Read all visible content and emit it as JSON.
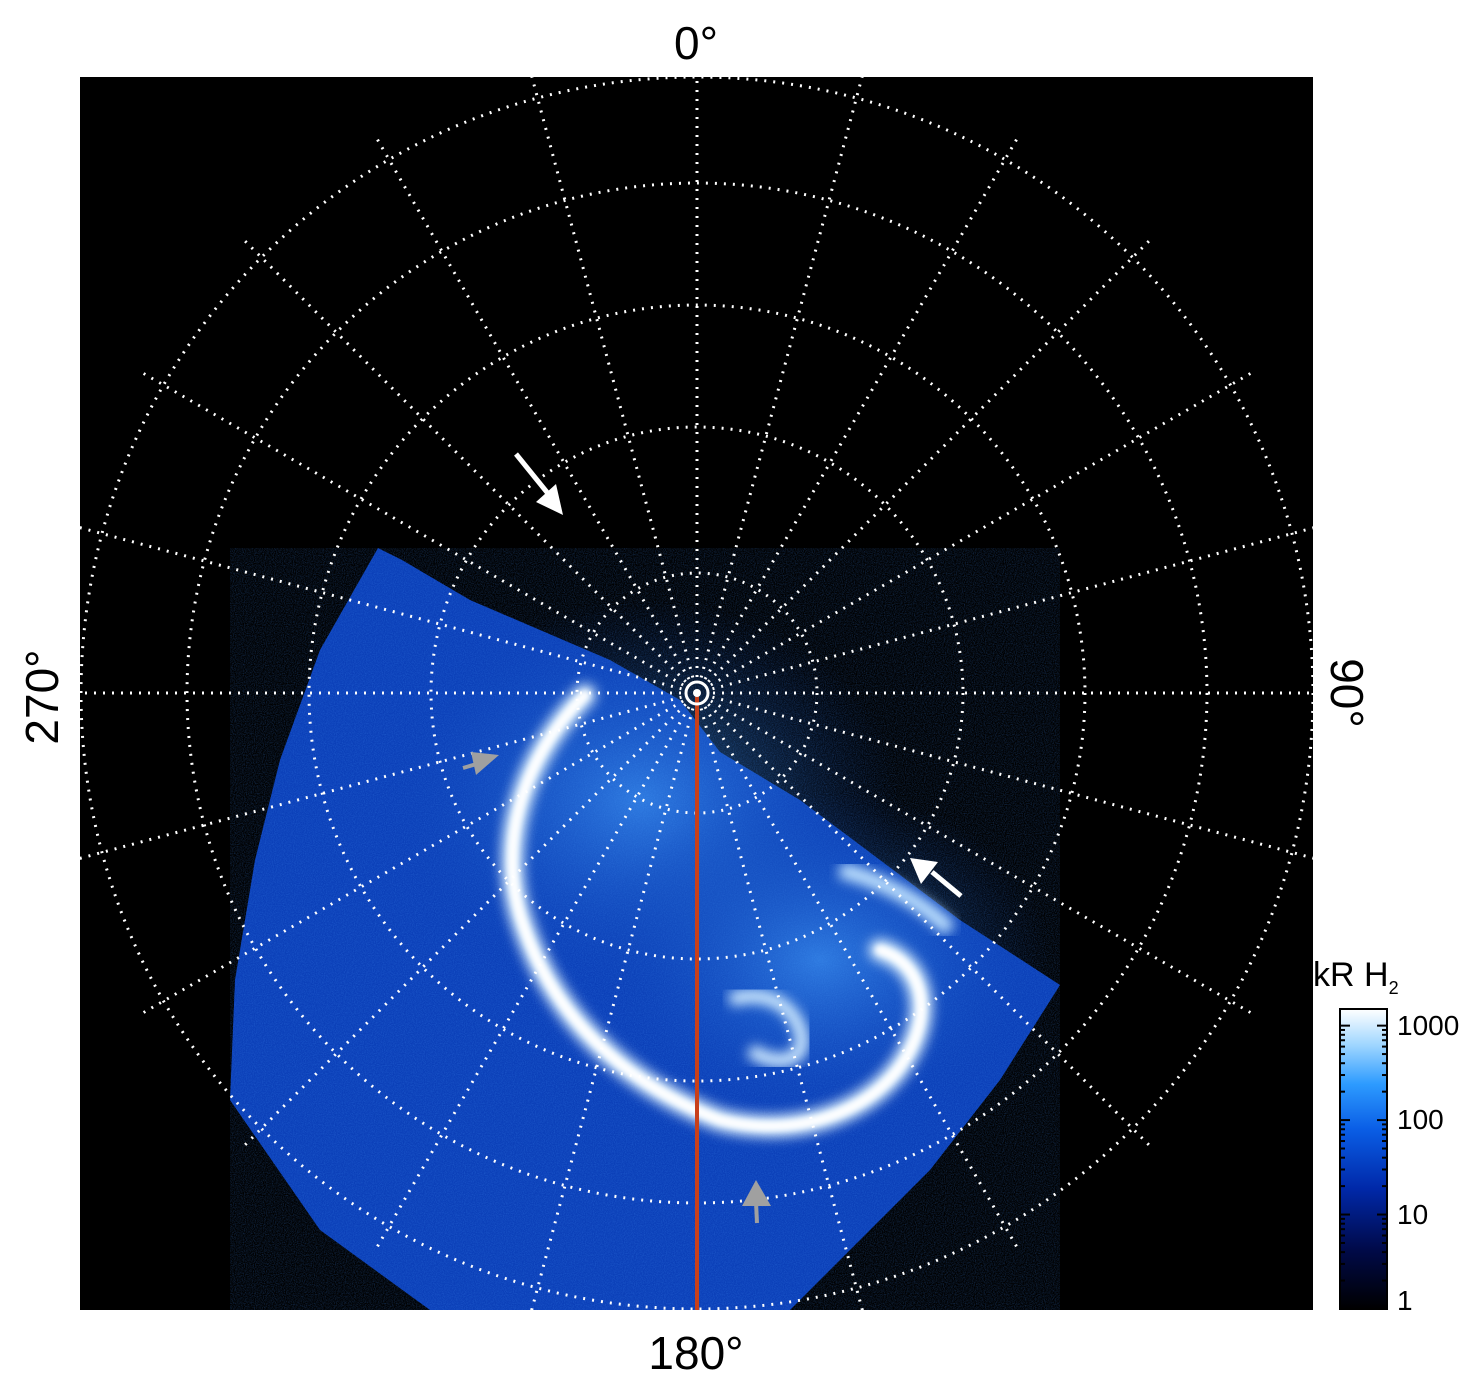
{
  "labels": {
    "top": "0°",
    "bottom": "180°",
    "left": "270°",
    "right": "90°"
  },
  "colorbar": {
    "title": "kR H",
    "title_sub": "2",
    "ticks": [
      {
        "label": "1000",
        "value": 1000
      },
      {
        "label": "100",
        "value": 100
      },
      {
        "label": "10",
        "value": 10
      },
      {
        "label": "1",
        "value": 1
      }
    ],
    "scale": "log",
    "range": [
      1,
      1500
    ],
    "colors": [
      "#000000",
      "#000a4a",
      "#0028a8",
      "#0a5ee6",
      "#2d9bff",
      "#9fd6ff",
      "#ffffff"
    ]
  },
  "colors": {
    "background": "#000000",
    "grid": "#ffffff",
    "meridian_line": "#c8401a",
    "arrow_white": "#ffffff",
    "arrow_gray": "#a0a0a0"
  },
  "arrows": [
    {
      "name": "white-arrow-upper",
      "color": "white"
    },
    {
      "name": "white-arrow-right",
      "color": "white"
    },
    {
      "name": "gray-arrow-left",
      "color": "gray"
    },
    {
      "name": "gray-arrow-bottom",
      "color": "gray"
    }
  ]
}
